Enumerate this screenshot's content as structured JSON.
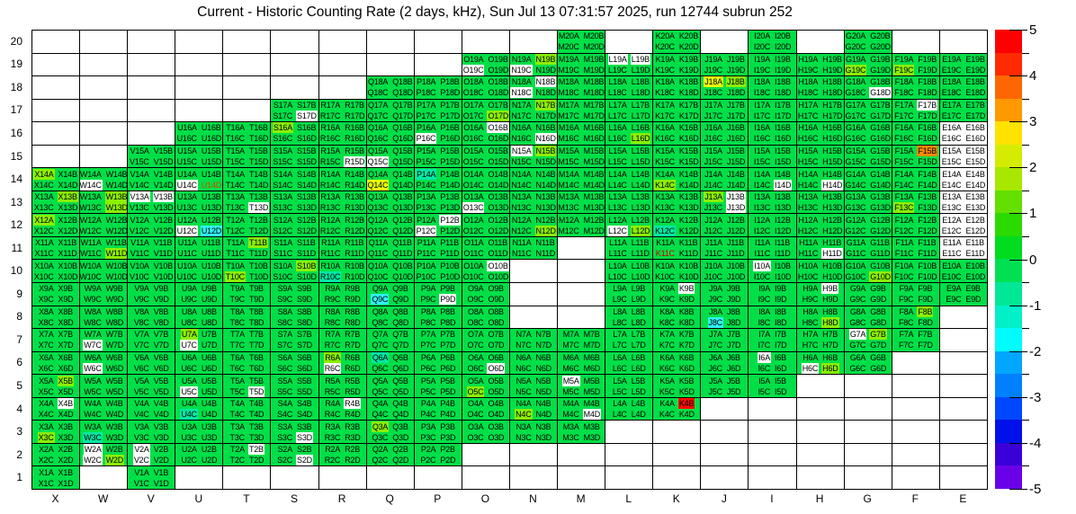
{
  "title": "Current - Historic Counting Rate (2 days, kHz), Sun Jul 13 07:31:57 2025, run 12744 subrun 252",
  "chart_data": {
    "type": "heatmap",
    "title": "Current - Historic Counting Rate (2 days, kHz), Sun Jul 13 07:31:57 2025, run 12744 subrun 252",
    "columns": [
      "X",
      "W",
      "V",
      "U",
      "T",
      "S",
      "R",
      "Q",
      "P",
      "O",
      "N",
      "M",
      "L",
      "K",
      "J",
      "I",
      "H",
      "G",
      "F",
      "E"
    ],
    "row_numbers": [
      20,
      19,
      18,
      17,
      16,
      15,
      14,
      13,
      12,
      11,
      10,
      9,
      8,
      7,
      6,
      5,
      4,
      3,
      2,
      1
    ],
    "suffixes": [
      "A",
      "B",
      "C",
      "D"
    ],
    "label_rule": "each cell shows column letter + row number + suffix; A,B on top line, C,D on bottom line",
    "palette": {
      "g": {
        "hex": "#00DF48",
        "approx_value": 0
      },
      "c": {
        "hex": "#8BF000",
        "approx_value": 1
      },
      "y": {
        "hex": "#E9FF00",
        "approx_value": 2
      },
      "o": {
        "hex": "#FF8A00",
        "approx_value": 4
      },
      "r": {
        "hex": "#FF0D00",
        "approx_value": 5
      },
      "t": {
        "hex": "#00E9A4",
        "approx_value": -0.5
      },
      "n": {
        "hex": "#2FF3F3",
        "approx_value": -2
      },
      "w": {
        "hex": "#FFFFFF",
        "approx_value": "no data"
      }
    },
    "text_overrides": {
      "K11C": "#CC0000",
      "U14D": "#C85000"
    },
    "cells": {
      "20": {
        "M": "gggg",
        "K": "gggg",
        "I": "gggg",
        "G": "gggg"
      },
      "19": {
        "O": "ggwg",
        "N": "gcwg",
        "M": "gggg",
        "L": "wwgg",
        "K": "gggg",
        "J": "gggg",
        "I": "gggg",
        "H": "gggg",
        "G": "ggcg",
        "F": "ggcg",
        "E": "gggg"
      },
      "18": {
        "Q": "gggg",
        "P": "gggg",
        "O": "gggg",
        "N": "gwwg",
        "M": "gggg",
        "L": "gggg",
        "K": "gggg",
        "J": "ycgg",
        "I": "gggg",
        "H": "gggg",
        "G": "gggw",
        "F": "gggg",
        "E": "gggg"
      },
      "17": {
        "S": "gggw",
        "R": "gggg",
        "Q": "gggg",
        "P": "gggg",
        "O": "gggc",
        "N": "gcgg",
        "M": "gggg",
        "L": "gggg",
        "K": "gggg",
        "J": "gggg",
        "I": "gggg",
        "H": "gggg",
        "G": "gggg",
        "F": "gwgg",
        "E": "gggg"
      },
      "16": {
        "U": "gggg",
        "T": "gggg",
        "S": "cggg",
        "R": "gggg",
        "Q": "gggg",
        "P": "ggwg",
        "O": "gwgg",
        "N": "gggw",
        "M": "gggg",
        "L": "gggc",
        "K": "gggg",
        "J": "gggg",
        "I": "gggg",
        "H": "gggg",
        "G": "gggg",
        "F": "gggg",
        "E": "wwww"
      },
      "15": {
        "V": "gggg",
        "U": "gggg",
        "T": "gggg",
        "S": "gggg",
        "R": "gggw",
        "Q": "ggwg",
        "P": "gggg",
        "O": "gggg",
        "N": "wcgg",
        "M": "gggg",
        "L": "gggg",
        "K": "gggg",
        "J": "gggg",
        "I": "gggg",
        "H": "gggg",
        "G": "gggg",
        "F": "gogg",
        "E": "wwww"
      },
      "14": {
        "X": "cggg",
        "W": "ggwg",
        "V": "gggg",
        "U": "ggwg",
        "T": "gggg",
        "S": "gggg",
        "R": "gggg",
        "Q": "ggyg",
        "P": "tggg",
        "O": "gggg",
        "N": "gggg",
        "M": "gggg",
        "L": "gggg",
        "K": "ggcg",
        "J": "gggg",
        "I": "gggw",
        "H": "gggw",
        "G": "gggg",
        "F": "gggg",
        "E": "wwww"
      },
      "13": {
        "X": "gcgg",
        "W": "gcgc",
        "V": "wwgg",
        "U": "gggg",
        "T": "gggw",
        "S": "gggg",
        "R": "gggg",
        "Q": "gggg",
        "P": "gggg",
        "O": "ggwg",
        "N": "gggg",
        "M": "gggg",
        "L": "gggg",
        "K": "gggg",
        "J": "cwgw",
        "I": "gggg",
        "H": "gggg",
        "G": "gggg",
        "F": "ggcg",
        "E": "wwww"
      },
      "12": {
        "X": "cggg",
        "W": "gggg",
        "V": "gggg",
        "U": "ggwn",
        "T": "gggg",
        "S": "gggg",
        "R": "gggg",
        "Q": "gggg",
        "P": "gwwg",
        "O": "gggg",
        "N": "gggc",
        "M": "gggg",
        "L": "ggwc",
        "K": "ggtg",
        "J": "gggg",
        "I": "gggg",
        "H": "gggg",
        "G": "gggg",
        "F": "gggg",
        "E": "wwww"
      },
      "11": {
        "X": "gggg",
        "W": "gggc",
        "V": "gggg",
        "U": "gggg",
        "T": "gcgg",
        "S": "gggg",
        "R": "gggg",
        "Q": "gggg",
        "P": "gggg",
        "O": "gggg",
        "N": "gggg",
        "L": "gggg",
        "K": "gggg",
        "J": "gggg",
        "I": "gggg",
        "H": "gggw",
        "G": "gggg",
        "F": "gggg",
        "E": "wwww"
      },
      "10": {
        "X": "gggg",
        "W": "gggg",
        "V": "gggg",
        "U": "gggg",
        "T": "ggcg",
        "S": "gcgg",
        "R": "ggtg",
        "Q": "gggg",
        "P": "gggg",
        "O": "gwgg",
        "L": "gggg",
        "K": "gggg",
        "J": "gggg",
        "I": "wggg",
        "H": "gggg",
        "G": "gggc",
        "F": "gggg",
        "E": "gggg"
      },
      "9": {
        "X": "gggg",
        "W": "gggg",
        "V": "gggg",
        "U": "gggg",
        "T": "gggg",
        "S": "gggg",
        "R": "gggg",
        "Q": "ggng",
        "P": "gggw",
        "O": "gggg",
        "L": "gggg",
        "K": "gwgg",
        "J": "gggg",
        "I": "gggg",
        "H": "gwgg",
        "G": "gggg",
        "F": "gggg",
        "E": "gggg"
      },
      "8": {
        "X": "gggg",
        "W": "gggg",
        "V": "gggg",
        "U": "gggg",
        "T": "gggg",
        "S": "gggg",
        "R": "gggg",
        "Q": "gggg",
        "P": "gggg",
        "O": "gggg",
        "L": "gggg",
        "K": "gggg",
        "J": "ggng",
        "I": "gggg",
        "H": "gggc",
        "G": "gggg",
        "F": "gcgg"
      },
      "7": {
        "X": "gggg",
        "W": "ggwg",
        "V": "gggg",
        "U": "cgwg",
        "T": "gggg",
        "S": "gggg",
        "R": "gggg",
        "Q": "gggg",
        "P": "gggg",
        "O": "gggg",
        "N": "gggg",
        "M": "gggg",
        "L": "gggg",
        "K": "gggg",
        "J": "gggg",
        "I": "gggg",
        "H": "gggg",
        "G": "wcgg",
        "F": "gggg"
      },
      "6": {
        "X": "gggg",
        "W": "ggwg",
        "V": "gggg",
        "U": "gggg",
        "T": "gggg",
        "S": "gggg",
        "R": "cgwg",
        "Q": "tggg",
        "P": "gggg",
        "O": "gggw",
        "N": "gggg",
        "M": "gggg",
        "L": "gggg",
        "K": "gggg",
        "J": "gggg",
        "I": "wggg",
        "H": "ggwc",
        "G": "gggg"
      },
      "5": {
        "X": "gcgg",
        "W": "gggg",
        "V": "gggg",
        "U": "ggwg",
        "T": "gggw",
        "S": "gggg",
        "R": "gggg",
        "Q": "gggg",
        "P": "gggg",
        "O": "ggcg",
        "N": "gggg",
        "M": "wggg",
        "L": "gggg",
        "K": "gggg",
        "J": "gggg",
        "I": "gggg"
      },
      "4": {
        "X": "gwgg",
        "W": "gggg",
        "V": "gggg",
        "U": "ggtg",
        "T": "gggg",
        "S": "gggg",
        "R": "gwgg",
        "Q": "gggg",
        "P": "gggg",
        "O": "gggg",
        "N": "ggcg",
        "M": "gggw",
        "L": "gggg",
        "K": "grgg"
      },
      "3": {
        "X": "ggcg",
        "W": "ggtg",
        "V": "gggg",
        "U": "gggg",
        "T": "gggg",
        "S": "gggw",
        "R": "gggg",
        "Q": "cggg",
        "P": "gggg",
        "O": "gggg",
        "N": "gggg",
        "M": "gggg"
      },
      "2": {
        "X": "gggg",
        "W": "wgwc",
        "V": "wgwg",
        "U": "gggg",
        "T": "gwgg",
        "S": "gggw",
        "R": "gggg",
        "Q": "gggg",
        "P": "gggg"
      },
      "1": {
        "X": "gggg",
        "V": "gggg"
      }
    },
    "colorbar": {
      "min": -5,
      "max": 5,
      "tick_labels": [
        "5",
        "4",
        "3",
        "2",
        "1",
        "0",
        "-1",
        "-2",
        "-3",
        "-4",
        "-5"
      ],
      "segments": [
        "#FF0000",
        "#FF2A00",
        "#FF6600",
        "#FF9900",
        "#FFE200",
        "#D5EC00",
        "#A8E700",
        "#63DF00",
        "#2ADA00",
        "#00DC1E",
        "#00E052",
        "#00E896",
        "#00F0C8",
        "#00FCFC",
        "#00A6FF",
        "#0080FF",
        "#0048FF",
        "#0010E8",
        "#3900D8",
        "#6A00E8"
      ]
    },
    "grid_on": true,
    "legend_position": "right"
  }
}
